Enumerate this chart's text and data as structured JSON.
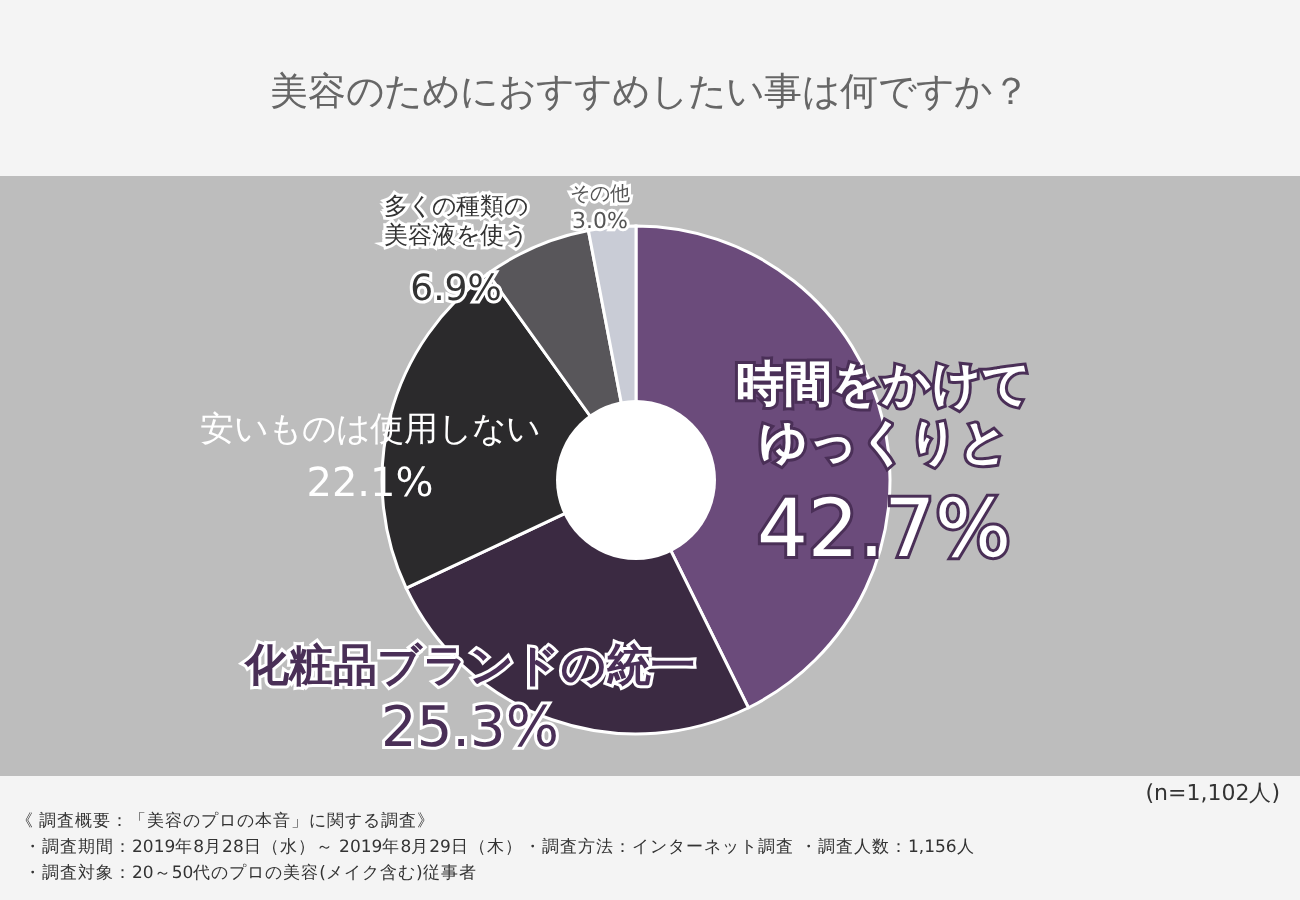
{
  "chart_data": {
    "type": "donut",
    "title": "美容のためにおすすめしたい事は何ですか？",
    "categories": [
      "時間をかけてゆっくりと",
      "化粧品ブランドの統一",
      "安いものは使用しない",
      "多くの種類の美容液を使う",
      "その他"
    ],
    "values": [
      42.7,
      25.3,
      22.1,
      6.9,
      3.0
    ],
    "colors": [
      "#6b4b7b",
      "#3b2a42",
      "#2b2a2c",
      "#58565a",
      "#c9ccd6"
    ],
    "value_labels": [
      "42.7%",
      "25.3%",
      "22.1%",
      "6.9%",
      "3.0%"
    ],
    "annotations": [
      "(n=1,102人)",
      "《 調査概要：「美容のプロの本音」に関する調査》",
      "・調査期間：2019年8月28日（水）～ 2019年8月29日（木）",
      "・調査方法：インターネット調査",
      "・調査人数：1,156人",
      "・調査対象：20～50代のプロの美容(メイク含む)従事者"
    ]
  }
}
